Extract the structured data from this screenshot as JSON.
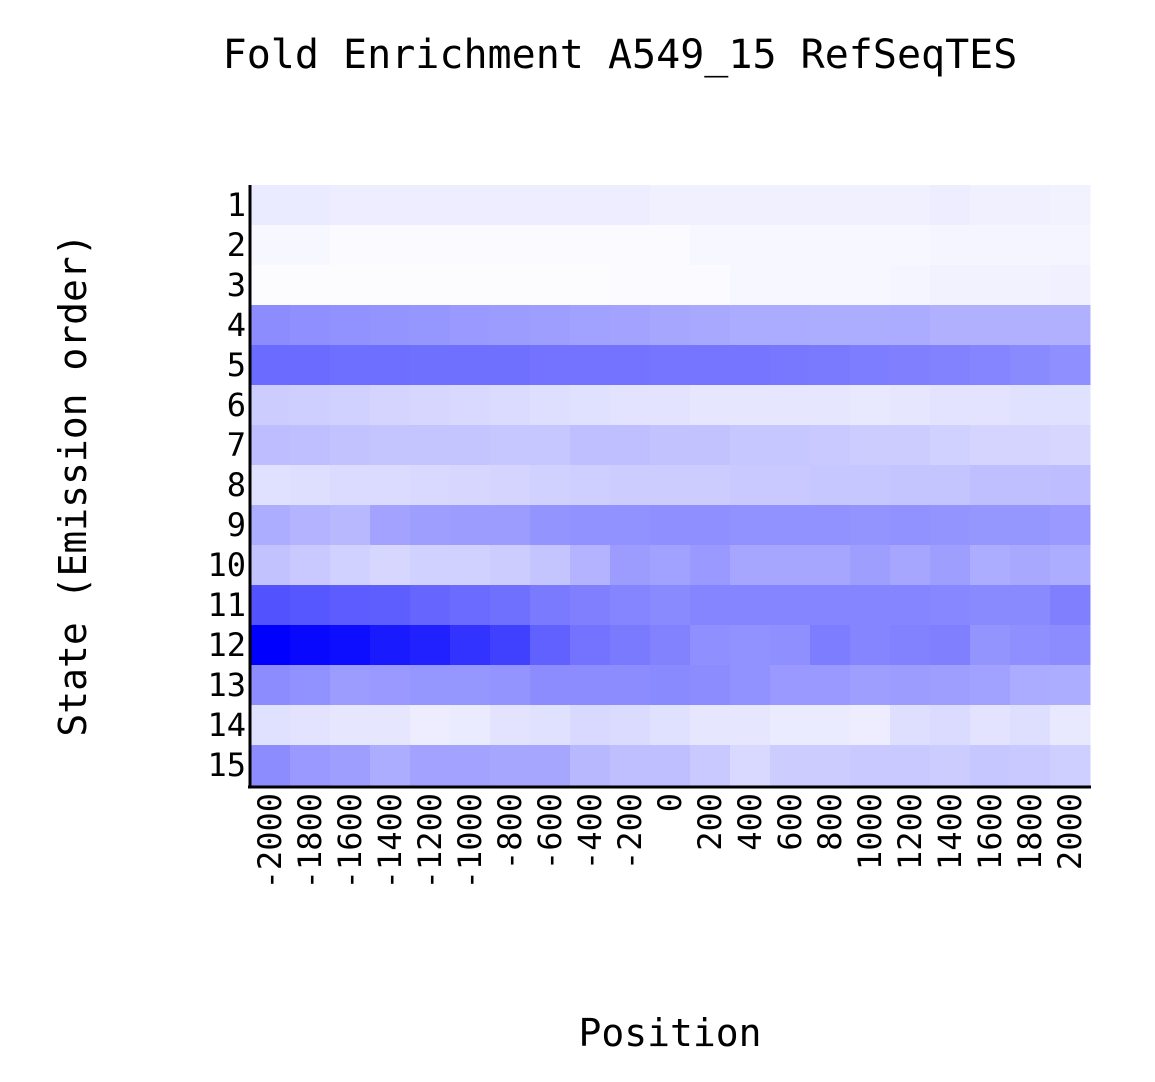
{
  "chart_data": {
    "type": "heatmap",
    "title": "Fold Enrichment A549_15 RefSeqTES",
    "xlabel": "Position",
    "ylabel": "State (Emission order)",
    "x_categories": [
      "-2000",
      "-1800",
      "-1600",
      "-1400",
      "-1200",
      "-1000",
      "-800",
      "-600",
      "-400",
      "-200",
      "0",
      "200",
      "400",
      "600",
      "800",
      "1000",
      "1200",
      "1400",
      "1600",
      "1800",
      "2000"
    ],
    "y_categories": [
      "1",
      "2",
      "3",
      "4",
      "5",
      "6",
      "7",
      "8",
      "9",
      "10",
      "11",
      "12",
      "13",
      "14",
      "15"
    ],
    "color_min": "#ffffff",
    "color_max": "#0000ff",
    "value_range": [
      0,
      1
    ],
    "values": [
      [
        0.08,
        0.08,
        0.07,
        0.07,
        0.07,
        0.07,
        0.07,
        0.07,
        0.07,
        0.07,
        0.06,
        0.06,
        0.06,
        0.06,
        0.06,
        0.06,
        0.06,
        0.07,
        0.06,
        0.06,
        0.05
      ],
      [
        0.03,
        0.03,
        0.02,
        0.02,
        0.02,
        0.02,
        0.02,
        0.02,
        0.02,
        0.02,
        0.02,
        0.03,
        0.03,
        0.03,
        0.03,
        0.03,
        0.03,
        0.04,
        0.04,
        0.04,
        0.04
      ],
      [
        0.01,
        0.01,
        0.01,
        0.01,
        0.01,
        0.01,
        0.01,
        0.01,
        0.01,
        0.02,
        0.02,
        0.02,
        0.03,
        0.03,
        0.03,
        0.03,
        0.04,
        0.05,
        0.05,
        0.05,
        0.06
      ],
      [
        0.45,
        0.44,
        0.43,
        0.42,
        0.41,
        0.4,
        0.39,
        0.38,
        0.37,
        0.36,
        0.35,
        0.34,
        0.33,
        0.33,
        0.32,
        0.32,
        0.33,
        0.31,
        0.31,
        0.31,
        0.31
      ],
      [
        0.58,
        0.58,
        0.57,
        0.57,
        0.56,
        0.56,
        0.56,
        0.55,
        0.55,
        0.55,
        0.54,
        0.54,
        0.54,
        0.53,
        0.52,
        0.51,
        0.5,
        0.49,
        0.48,
        0.46,
        0.44
      ],
      [
        0.2,
        0.19,
        0.18,
        0.17,
        0.16,
        0.15,
        0.14,
        0.13,
        0.12,
        0.11,
        0.11,
        0.1,
        0.1,
        0.1,
        0.1,
        0.09,
        0.1,
        0.11,
        0.11,
        0.12,
        0.12
      ],
      [
        0.26,
        0.25,
        0.24,
        0.23,
        0.23,
        0.23,
        0.22,
        0.22,
        0.25,
        0.25,
        0.24,
        0.24,
        0.22,
        0.22,
        0.21,
        0.2,
        0.2,
        0.18,
        0.17,
        0.17,
        0.16
      ],
      [
        0.12,
        0.13,
        0.14,
        0.14,
        0.15,
        0.16,
        0.17,
        0.18,
        0.19,
        0.2,
        0.2,
        0.2,
        0.21,
        0.21,
        0.22,
        0.22,
        0.23,
        0.23,
        0.25,
        0.25,
        0.26
      ],
      [
        0.32,
        0.3,
        0.28,
        0.36,
        0.38,
        0.39,
        0.39,
        0.42,
        0.43,
        0.43,
        0.44,
        0.44,
        0.43,
        0.43,
        0.43,
        0.42,
        0.43,
        0.42,
        0.41,
        0.41,
        0.4
      ],
      [
        0.24,
        0.21,
        0.18,
        0.16,
        0.18,
        0.18,
        0.2,
        0.23,
        0.3,
        0.39,
        0.37,
        0.4,
        0.35,
        0.35,
        0.35,
        0.38,
        0.35,
        0.38,
        0.32,
        0.34,
        0.32
      ],
      [
        0.68,
        0.66,
        0.64,
        0.63,
        0.6,
        0.58,
        0.56,
        0.52,
        0.5,
        0.48,
        0.46,
        0.48,
        0.48,
        0.48,
        0.48,
        0.48,
        0.48,
        0.47,
        0.46,
        0.46,
        0.5
      ],
      [
        1.0,
        0.97,
        0.95,
        0.9,
        0.87,
        0.8,
        0.75,
        0.62,
        0.55,
        0.52,
        0.49,
        0.44,
        0.43,
        0.44,
        0.51,
        0.48,
        0.49,
        0.5,
        0.42,
        0.44,
        0.45
      ],
      [
        0.45,
        0.43,
        0.39,
        0.4,
        0.41,
        0.41,
        0.42,
        0.45,
        0.45,
        0.45,
        0.46,
        0.45,
        0.43,
        0.4,
        0.4,
        0.38,
        0.39,
        0.38,
        0.37,
        0.33,
        0.32
      ],
      [
        0.12,
        0.11,
        0.1,
        0.1,
        0.07,
        0.08,
        0.11,
        0.12,
        0.15,
        0.14,
        0.12,
        0.1,
        0.1,
        0.08,
        0.08,
        0.07,
        0.13,
        0.14,
        0.11,
        0.13,
        0.09
      ],
      [
        0.45,
        0.4,
        0.38,
        0.32,
        0.36,
        0.36,
        0.35,
        0.35,
        0.28,
        0.25,
        0.25,
        0.21,
        0.15,
        0.2,
        0.2,
        0.21,
        0.21,
        0.2,
        0.22,
        0.21,
        0.19
      ]
    ]
  }
}
